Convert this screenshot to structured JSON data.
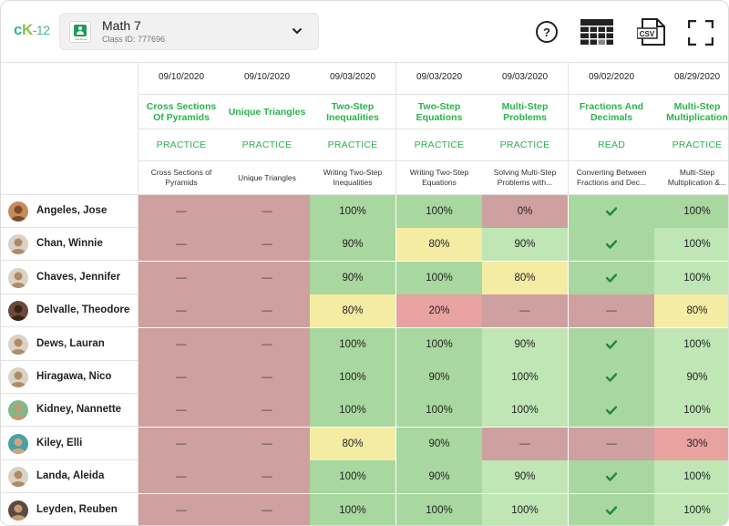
{
  "header": {
    "logo": "cK-12",
    "class_name": "Math 7",
    "class_id": "Class ID: 777696",
    "class_icon_caption": "Classroom",
    "icons": [
      "help-icon",
      "grid-view-icon",
      "csv-export-icon",
      "fullscreen-icon"
    ],
    "csv_label": "CSV"
  },
  "columns": [
    {
      "date": "09/10/2020",
      "title": "Cross Sections Of Pyramids",
      "type": "PRACTICE",
      "subtitle": "Cross Sections of Pyramids"
    },
    {
      "date": "09/10/2020",
      "title": "Unique Triangles",
      "type": "PRACTICE",
      "subtitle": "Unique Triangles"
    },
    {
      "date": "09/03/2020",
      "title": "Two-Step Inequalities",
      "type": "PRACTICE",
      "subtitle": "Writing Two-Step Inequalities"
    },
    {
      "date": "09/03/2020",
      "title": "Two-Step Equations",
      "type": "PRACTICE",
      "subtitle": "Writing Two-Step Equations"
    },
    {
      "date": "09/03/2020",
      "title": "Multi-Step Problems",
      "type": "PRACTICE",
      "subtitle": "Solving Multi-Step Problems with..."
    },
    {
      "date": "09/02/2020",
      "title": "Fractions And Decimals",
      "type": "READ",
      "subtitle": "Converting Between Fractions and Dec..."
    },
    {
      "date": "08/29/2020",
      "title": "Multi-Step Multiplication",
      "type": "PRACTICE",
      "subtitle": "Multi-Step Multiplication &..."
    }
  ],
  "students": [
    {
      "name": "Angeles, Jose",
      "avatar": {
        "bg": "#c98a5a",
        "skin": "#7a4a2e"
      },
      "scores": [
        {
          "v": "—",
          "s": "empty"
        },
        {
          "v": "—",
          "s": "empty"
        },
        {
          "v": "100%",
          "s": "high"
        },
        {
          "v": "100%",
          "s": "high"
        },
        {
          "v": "0%",
          "s": "low"
        },
        {
          "v": "check",
          "s": "high"
        },
        {
          "v": "100%",
          "s": "high"
        }
      ]
    },
    {
      "name": "Chan, Winnie",
      "avatar": {
        "bg": "#d9d2c5",
        "skin": "#b08a66"
      },
      "scores": [
        {
          "v": "—",
          "s": "empty"
        },
        {
          "v": "—",
          "s": "empty"
        },
        {
          "v": "90%",
          "s": "high"
        },
        {
          "v": "80%",
          "s": "mid"
        },
        {
          "v": "90%",
          "s": "good"
        },
        {
          "v": "check",
          "s": "high"
        },
        {
          "v": "100%",
          "s": "good"
        }
      ]
    },
    {
      "name": "Chaves, Jennifer",
      "avatar": {
        "bg": "#d9d2c5",
        "skin": "#b08a66"
      },
      "scores": [
        {
          "v": "—",
          "s": "empty"
        },
        {
          "v": "—",
          "s": "empty"
        },
        {
          "v": "90%",
          "s": "high"
        },
        {
          "v": "100%",
          "s": "high"
        },
        {
          "v": "80%",
          "s": "mid"
        },
        {
          "v": "check",
          "s": "high"
        },
        {
          "v": "100%",
          "s": "good"
        }
      ]
    },
    {
      "name": "Delvalle, Theodore",
      "avatar": {
        "bg": "#6b4a3a",
        "skin": "#3a2418"
      },
      "scores": [
        {
          "v": "—",
          "s": "empty"
        },
        {
          "v": "—",
          "s": "empty"
        },
        {
          "v": "80%",
          "s": "mid"
        },
        {
          "v": "20%",
          "s": "bad"
        },
        {
          "v": "—",
          "s": "empty"
        },
        {
          "v": "—",
          "s": "empty"
        },
        {
          "v": "80%",
          "s": "mid"
        }
      ]
    },
    {
      "name": "Dews, Lauran",
      "avatar": {
        "bg": "#d9d2c5",
        "skin": "#b08a66"
      },
      "scores": [
        {
          "v": "—",
          "s": "empty"
        },
        {
          "v": "—",
          "s": "empty"
        },
        {
          "v": "100%",
          "s": "high"
        },
        {
          "v": "100%",
          "s": "high"
        },
        {
          "v": "90%",
          "s": "good"
        },
        {
          "v": "check",
          "s": "high"
        },
        {
          "v": "100%",
          "s": "good"
        }
      ]
    },
    {
      "name": "Hiragawa, Nico",
      "avatar": {
        "bg": "#d9d2c5",
        "skin": "#b08a66"
      },
      "scores": [
        {
          "v": "—",
          "s": "empty"
        },
        {
          "v": "—",
          "s": "empty"
        },
        {
          "v": "100%",
          "s": "high"
        },
        {
          "v": "90%",
          "s": "high"
        },
        {
          "v": "100%",
          "s": "good"
        },
        {
          "v": "check",
          "s": "high"
        },
        {
          "v": "90%",
          "s": "good"
        }
      ]
    },
    {
      "name": "Kidney, Nannette",
      "avatar": {
        "bg": "#7fb98a",
        "skin": "#c49a72"
      },
      "scores": [
        {
          "v": "—",
          "s": "empty"
        },
        {
          "v": "—",
          "s": "empty"
        },
        {
          "v": "100%",
          "s": "high"
        },
        {
          "v": "100%",
          "s": "high"
        },
        {
          "v": "100%",
          "s": "good"
        },
        {
          "v": "check",
          "s": "high"
        },
        {
          "v": "100%",
          "s": "good"
        }
      ]
    },
    {
      "name": "Kiley, Elli",
      "avatar": {
        "bg": "#4aa0a8",
        "skin": "#d4a37c"
      },
      "scores": [
        {
          "v": "—",
          "s": "empty"
        },
        {
          "v": "—",
          "s": "empty"
        },
        {
          "v": "80%",
          "s": "mid"
        },
        {
          "v": "90%",
          "s": "high"
        },
        {
          "v": "—",
          "s": "empty"
        },
        {
          "v": "—",
          "s": "empty"
        },
        {
          "v": "30%",
          "s": "bad"
        }
      ]
    },
    {
      "name": "Landa, Aleida",
      "avatar": {
        "bg": "#d9d2c5",
        "skin": "#b08a66"
      },
      "scores": [
        {
          "v": "—",
          "s": "empty"
        },
        {
          "v": "—",
          "s": "empty"
        },
        {
          "v": "100%",
          "s": "high"
        },
        {
          "v": "90%",
          "s": "high"
        },
        {
          "v": "90%",
          "s": "good"
        },
        {
          "v": "check",
          "s": "high"
        },
        {
          "v": "100%",
          "s": "good"
        }
      ]
    },
    {
      "name": "Leyden, Reuben",
      "avatar": {
        "bg": "#5a4a40",
        "skin": "#c49a72"
      },
      "scores": [
        {
          "v": "—",
          "s": "empty"
        },
        {
          "v": "—",
          "s": "empty"
        },
        {
          "v": "100%",
          "s": "high"
        },
        {
          "v": "100%",
          "s": "high"
        },
        {
          "v": "100%",
          "s": "good"
        },
        {
          "v": "check",
          "s": "high"
        },
        {
          "v": "100%",
          "s": "good"
        }
      ]
    }
  ],
  "status_colors": {
    "empty": "#cfa0a0",
    "high": "#a9d7a0",
    "good": "#bfe6b4",
    "mid": "#f4eca2",
    "low": "#cfa0a0",
    "bad": "#e8a3a0"
  },
  "accent": "#2bb24c"
}
